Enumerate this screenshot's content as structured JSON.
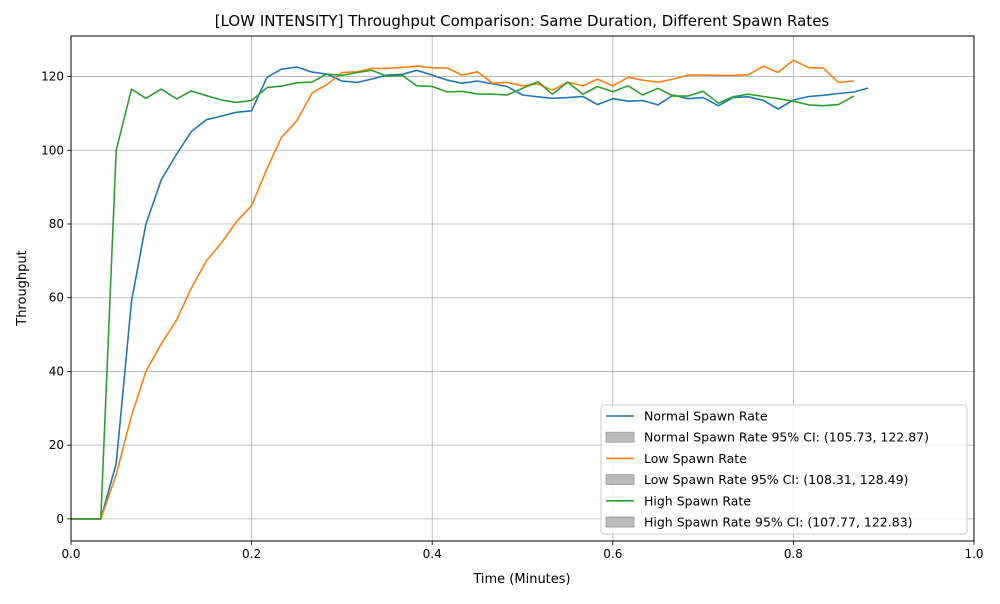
{
  "chart_data": {
    "type": "line",
    "title": "[LOW INTENSITY] Throughput Comparison: Same Duration, Different Spawn Rates",
    "xlabel": "Time (Minutes)",
    "ylabel": "Throughput",
    "xlim": [
      0.0,
      1.0
    ],
    "ylim": [
      -6,
      131
    ],
    "xticks": [
      0.0,
      0.2,
      0.4,
      0.6,
      0.8,
      1.0
    ],
    "xtick_labels": [
      "0.0",
      "0.2",
      "0.4",
      "0.6",
      "0.8",
      "1.0"
    ],
    "yticks": [
      0,
      20,
      40,
      60,
      80,
      100,
      120
    ],
    "ytick_labels": [
      "0",
      "20",
      "40",
      "60",
      "80",
      "100",
      "120"
    ],
    "grid": true,
    "legend_position": "bottom-right",
    "series": [
      {
        "name": "Normal Spawn Rate",
        "color": "#1f77b4",
        "ci_label": "Normal Spawn Rate 95% CI: (105.73, 122.87)",
        "x": [
          0.0,
          0.017,
          0.033,
          0.05,
          0.067,
          0.083,
          0.1,
          0.117,
          0.133,
          0.15,
          0.167,
          0.183,
          0.2,
          0.217,
          0.233,
          0.25,
          0.267,
          0.283,
          0.3,
          0.317,
          0.333,
          0.35,
          0.367,
          0.383,
          0.4,
          0.417,
          0.433,
          0.45,
          0.467,
          0.483,
          0.5,
          0.517,
          0.533,
          0.55,
          0.567,
          0.583,
          0.6,
          0.617,
          0.633,
          0.65,
          0.667,
          0.683,
          0.7,
          0.717,
          0.733,
          0.75,
          0.767,
          0.783,
          0.8,
          0.817,
          0.833,
          0.85,
          0.867,
          0.883
        ],
        "y": [
          0,
          0,
          0,
          15,
          59,
          80,
          92,
          99,
          105,
          108.3,
          109.3,
          110.3,
          110.7,
          119.8,
          122,
          122.6,
          121.2,
          120.7,
          118.8,
          118.4,
          119.3,
          120.4,
          120.6,
          121.7,
          120.4,
          119,
          118.2,
          118.8,
          118,
          117.3,
          115,
          114.5,
          114.1,
          114.3,
          114.6,
          112.4,
          114,
          113.3,
          113.5,
          112.3,
          115,
          114,
          114.3,
          112.1,
          114.3,
          114.5,
          113.5,
          111.2,
          113.6,
          114.6,
          114.9,
          115.4,
          115.8,
          116.9
        ]
      },
      {
        "name": "Low Spawn Rate",
        "color": "#ff7f0e",
        "ci_label": "Low Spawn Rate 95% CI: (108.31, 128.49)",
        "x": [
          0.0,
          0.017,
          0.033,
          0.05,
          0.067,
          0.083,
          0.1,
          0.117,
          0.133,
          0.15,
          0.167,
          0.183,
          0.2,
          0.217,
          0.233,
          0.25,
          0.267,
          0.283,
          0.3,
          0.317,
          0.333,
          0.35,
          0.367,
          0.383,
          0.4,
          0.417,
          0.433,
          0.45,
          0.467,
          0.483,
          0.5,
          0.517,
          0.533,
          0.55,
          0.567,
          0.583,
          0.6,
          0.617,
          0.633,
          0.65,
          0.667,
          0.683,
          0.7,
          0.717,
          0.733,
          0.75,
          0.767,
          0.783,
          0.8,
          0.817,
          0.833,
          0.85,
          0.867
        ],
        "y": [
          0,
          0,
          0,
          12,
          28,
          40,
          47.5,
          54,
          62.5,
          70,
          75,
          80.5,
          85,
          95,
          103.5,
          108,
          115.5,
          117.8,
          121.1,
          121.3,
          122.2,
          122.2,
          122.5,
          122.8,
          122.4,
          122.3,
          120.4,
          121.3,
          118.2,
          118.4,
          117.5,
          118,
          116.3,
          118.5,
          117.5,
          119.3,
          117.5,
          119.8,
          119,
          118.5,
          119.3,
          120.4,
          120.4,
          120.3,
          120.3,
          120.5,
          122.8,
          121.1,
          124.4,
          122.4,
          122.3,
          118.4,
          118.8
        ]
      },
      {
        "name": "High Spawn Rate",
        "color": "#2ca02c",
        "ci_label": "High Spawn Rate 95% CI: (107.77, 122.83)",
        "x": [
          0.0,
          0.017,
          0.033,
          0.05,
          0.067,
          0.083,
          0.1,
          0.117,
          0.133,
          0.15,
          0.167,
          0.183,
          0.2,
          0.217,
          0.233,
          0.25,
          0.267,
          0.283,
          0.3,
          0.317,
          0.333,
          0.35,
          0.367,
          0.383,
          0.4,
          0.417,
          0.433,
          0.45,
          0.467,
          0.483,
          0.5,
          0.517,
          0.533,
          0.55,
          0.567,
          0.583,
          0.6,
          0.617,
          0.633,
          0.65,
          0.667,
          0.683,
          0.7,
          0.717,
          0.733,
          0.75,
          0.767,
          0.783,
          0.8,
          0.817,
          0.833,
          0.85,
          0.867
        ],
        "y": [
          0,
          0,
          0,
          100,
          116.6,
          114.1,
          116.6,
          113.9,
          116.1,
          114.8,
          113.6,
          113,
          113.5,
          117,
          117.4,
          118.3,
          118.5,
          120.7,
          120.3,
          121.1,
          121.7,
          120.1,
          120.3,
          117.5,
          117.3,
          115.8,
          116,
          115.3,
          115.2,
          115,
          116.8,
          118.6,
          115.2,
          118.5,
          115.2,
          117.3,
          115.9,
          117.5,
          115,
          116.8,
          114.7,
          114.7,
          116,
          112.8,
          114.5,
          115.2,
          114.6,
          114,
          113.3,
          112.3,
          112.1,
          112.4,
          114.7
        ]
      }
    ]
  }
}
